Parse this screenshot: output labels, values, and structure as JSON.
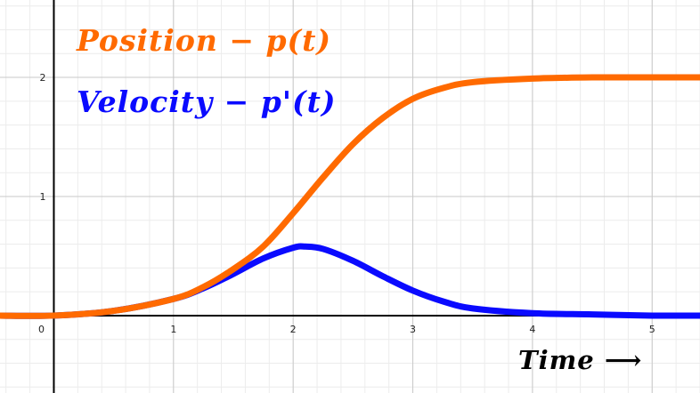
{
  "chart_data": {
    "type": "line",
    "title": "",
    "xlabel": "Time ⟶",
    "ylabel": "",
    "xlim": [
      -0.45,
      5.4
    ],
    "ylim": [
      -0.65,
      2.65
    ],
    "grid": true,
    "x_ticks": [
      "0",
      "1",
      "2",
      "3",
      "4",
      "5"
    ],
    "y_ticks": [
      "1",
      "2"
    ],
    "series": [
      {
        "name": "Position − p(t)",
        "color": "#ff6a00",
        "x": [
          0,
          0.5,
          1.0,
          1.25,
          1.5,
          1.75,
          2.0,
          2.25,
          2.5,
          2.75,
          3.0,
          3.25,
          3.5,
          4.0,
          4.5,
          5.0,
          5.4
        ],
        "y": [
          0.0,
          0.04,
          0.14,
          0.24,
          0.39,
          0.58,
          0.86,
          1.16,
          1.44,
          1.66,
          1.82,
          1.91,
          1.96,
          1.99,
          2.0,
          2.0,
          2.0
        ]
      },
      {
        "name": "Velocity − p'(t)",
        "color": "#0a0aff",
        "x": [
          0,
          0.5,
          1.0,
          1.25,
          1.5,
          1.75,
          2.0,
          2.1,
          2.25,
          2.5,
          2.75,
          3.0,
          3.25,
          3.5,
          4.0,
          4.5,
          5.0,
          5.4
        ],
        "y": [
          0.0,
          0.04,
          0.14,
          0.23,
          0.35,
          0.48,
          0.57,
          0.58,
          0.56,
          0.46,
          0.33,
          0.21,
          0.12,
          0.06,
          0.02,
          0.01,
          0.0,
          0.0
        ]
      }
    ]
  }
}
